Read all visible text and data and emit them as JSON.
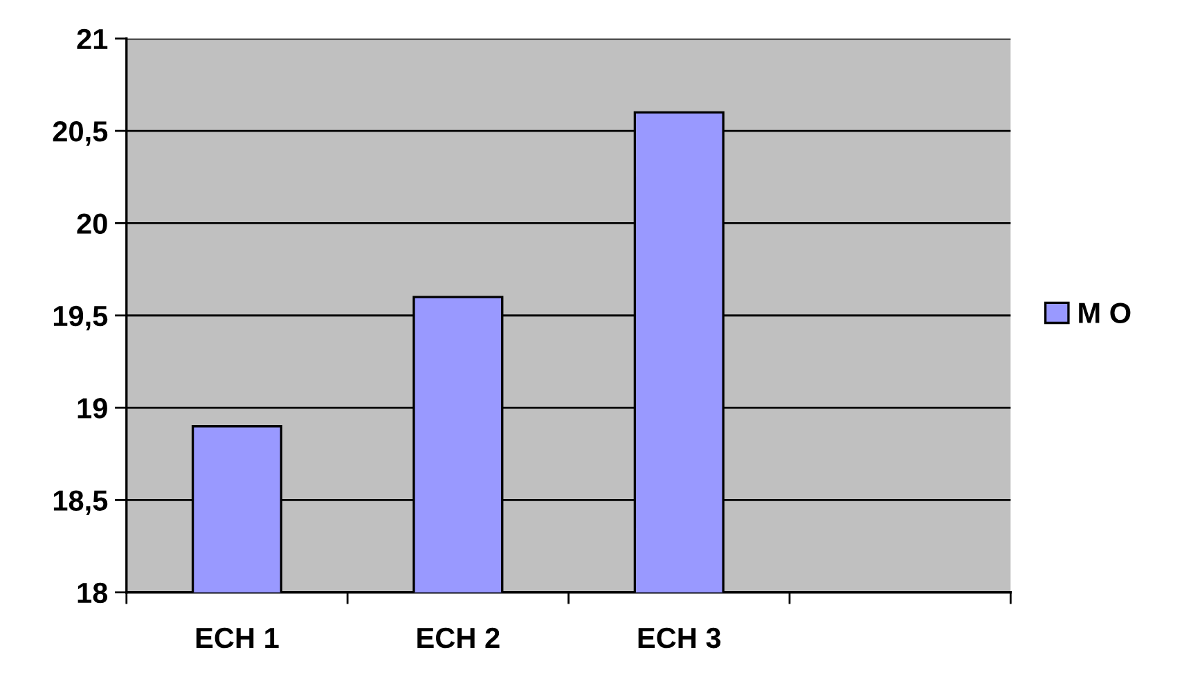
{
  "chart_data": {
    "type": "bar",
    "categories": [
      "ECH 1",
      "ECH 2",
      "ECH 3",
      null
    ],
    "series": [
      {
        "name": "M O",
        "color": "#9999ff",
        "values": [
          18.9,
          19.6,
          20.6,
          null
        ]
      }
    ],
    "ylim": [
      18,
      21
    ],
    "yticks": [
      18,
      {
        "value": 18.5,
        "label": "18,5"
      },
      19,
      {
        "value": 19.5,
        "label": "19,5"
      },
      20,
      {
        "value": 20.5,
        "label": "20,5"
      },
      21
    ],
    "grid": "y",
    "legend": "right"
  }
}
